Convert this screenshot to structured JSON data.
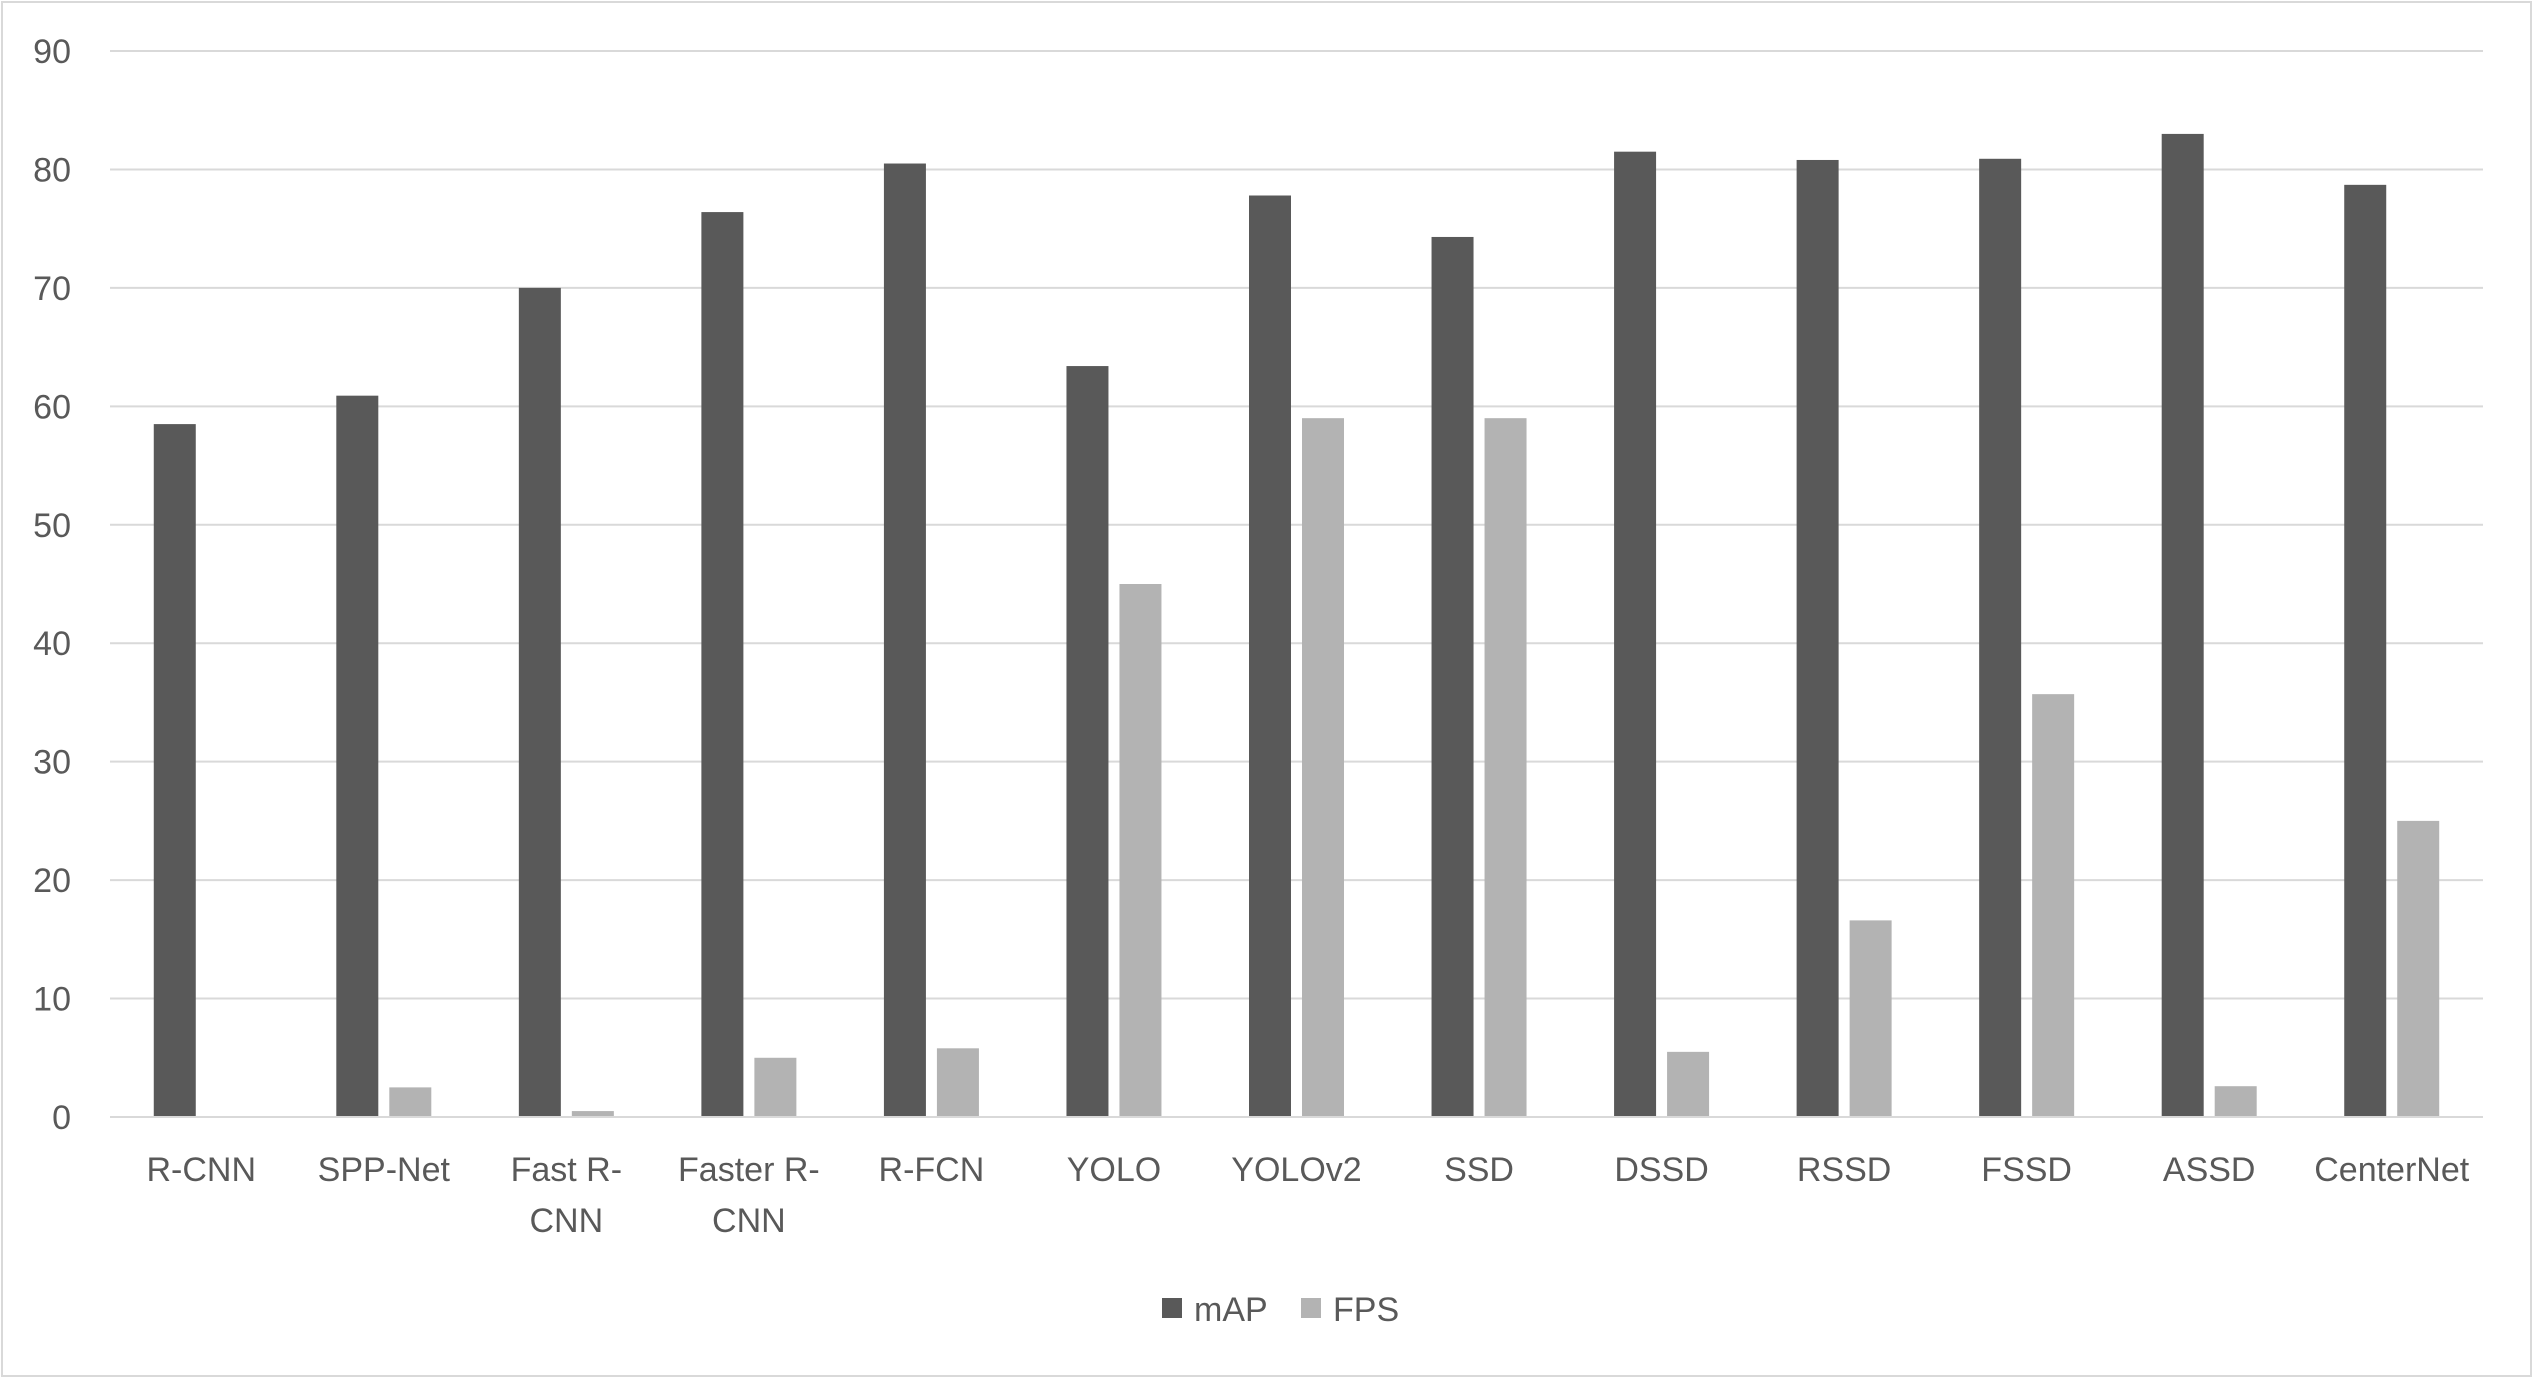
{
  "chart_data": {
    "type": "bar",
    "title": "",
    "xlabel": "",
    "ylabel": "",
    "categories": [
      "R-CNN",
      "SPP-Net",
      "Fast R-CNN",
      "Faster R-CNN",
      "R-FCN",
      "YOLO",
      "YOLOv2",
      "SSD",
      "DSSD",
      "RSSD",
      "FSSD",
      "ASSD",
      "CenterNet"
    ],
    "category_label_lines": [
      [
        "R-CNN"
      ],
      [
        "SPP-Net"
      ],
      [
        "Fast R-",
        "CNN"
      ],
      [
        "Faster R-",
        "CNN"
      ],
      [
        "R-FCN"
      ],
      [
        "YOLO"
      ],
      [
        "YOLOv2"
      ],
      [
        "SSD"
      ],
      [
        "DSSD"
      ],
      [
        "RSSD"
      ],
      [
        "FSSD"
      ],
      [
        "ASSD"
      ],
      [
        "CenterNet"
      ]
    ],
    "series": [
      {
        "name": "mAP",
        "color": "#595959",
        "values": [
          58.5,
          60.9,
          70.0,
          76.4,
          80.5,
          63.4,
          77.8,
          74.3,
          81.5,
          80.8,
          80.9,
          83.0,
          78.7
        ]
      },
      {
        "name": "FPS",
        "color": "#b3b3b3",
        "values": [
          0.02,
          2.5,
          0.5,
          5.0,
          5.8,
          45.0,
          59.0,
          59.0,
          5.5,
          16.6,
          35.7,
          2.6,
          25.0
        ]
      }
    ],
    "ylim": [
      0,
      90
    ],
    "yticks": [
      "0",
      "10",
      "20",
      "30",
      "40",
      "50",
      "60",
      "70",
      "80",
      "90"
    ],
    "grid": true,
    "legend_position": "bottom"
  }
}
